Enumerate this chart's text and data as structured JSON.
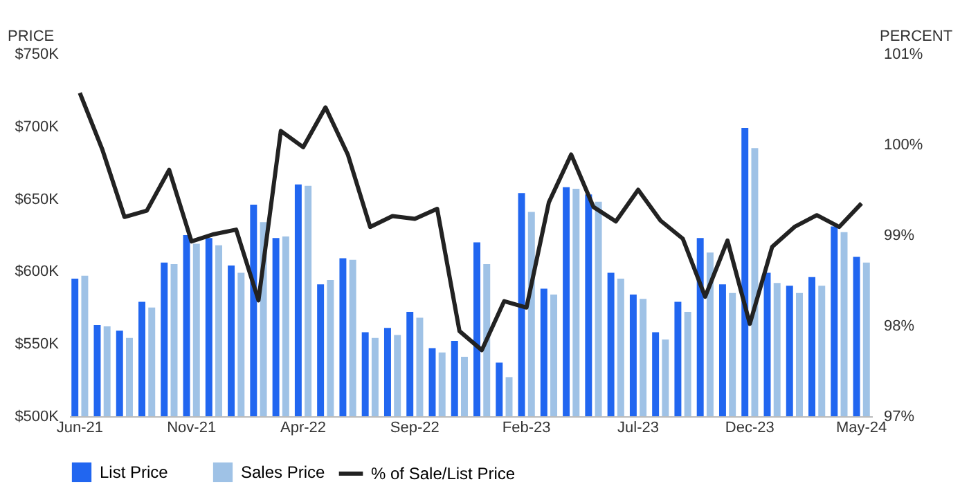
{
  "chart_data": {
    "type": "bar",
    "legend": "bottom",
    "xlabel": null,
    "categories": [
      "Jun-21",
      null,
      null,
      null,
      null,
      "Nov-21",
      null,
      null,
      null,
      null,
      "Apr-22",
      null,
      null,
      null,
      null,
      "Sep-22",
      null,
      null,
      null,
      null,
      "Feb-23",
      null,
      null,
      null,
      null,
      "Jul-23",
      null,
      null,
      null,
      null,
      "Dec-23",
      null,
      null,
      null,
      null,
      "May-24"
    ],
    "ylabel": "PRICE",
    "y2label": "PERCENT",
    "ylim": [
      500,
      750
    ],
    "yticks": [
      {
        "value": 500,
        "label": "$500K"
      },
      {
        "value": 550,
        "label": "$550K"
      },
      {
        "value": 600,
        "label": "$600K"
      },
      {
        "value": 650,
        "label": "$650K"
      },
      {
        "value": 700,
        "label": "$700K"
      },
      {
        "value": 750,
        "label": "$750K"
      }
    ],
    "y2lim": [
      97,
      101
    ],
    "y2ticks": [
      {
        "value": 97,
        "label": "97%"
      },
      {
        "value": 98,
        "label": "98%"
      },
      {
        "value": 99,
        "label": "99%"
      },
      {
        "value": 100,
        "label": "100%"
      },
      {
        "value": 101,
        "label": "101%"
      }
    ],
    "grid": false,
    "series": [
      {
        "name": "% of Sale/List Price",
        "type": "line",
        "axis": "y2",
        "color": "#222222",
        "values": [
          100.57,
          99.95,
          99.2,
          99.27,
          99.72,
          98.93,
          99.01,
          99.06,
          98.28,
          100.15,
          99.97,
          100.41,
          99.89,
          99.09,
          99.21,
          99.18,
          99.29,
          97.94,
          97.73,
          98.27,
          98.2,
          99.36,
          99.89,
          99.31,
          99.15,
          99.5,
          99.16,
          98.96,
          98.32,
          98.94,
          98.02,
          98.87,
          99.09,
          99.22,
          99.09,
          99.35
        ]
      },
      {
        "name": "List Price",
        "type": "bar",
        "color": "#2166f0",
        "values": [
          595,
          563,
          559,
          579,
          606,
          625,
          623,
          604,
          646,
          623,
          660,
          591,
          609,
          558,
          561,
          572,
          547,
          552,
          620,
          537,
          654,
          588,
          658,
          653,
          599,
          584,
          558,
          579,
          623,
          591,
          699,
          599,
          590,
          596,
          631,
          610
        ]
      },
      {
        "name": "Sales Price",
        "type": "bar",
        "color": "#9fc2e6",
        "values": [
          597,
          562,
          554,
          575,
          605,
          619,
          618,
          599,
          634,
          624,
          659,
          594,
          608,
          554,
          556,
          568,
          544,
          541,
          605,
          527,
          641,
          584,
          657,
          648,
          595,
          581,
          553,
          572,
          613,
          585,
          685,
          592,
          585,
          590,
          627,
          606
        ]
      }
    ]
  }
}
